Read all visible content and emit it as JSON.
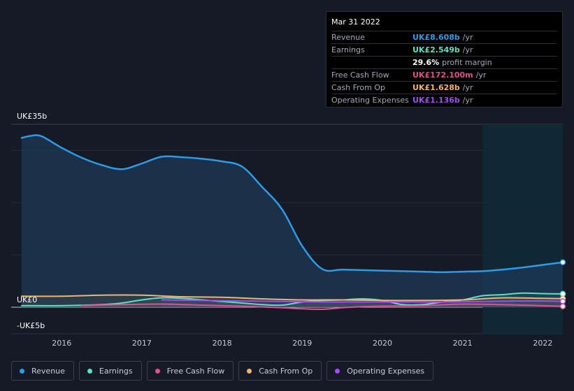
{
  "tooltip": {
    "date": "Mar 31 2022",
    "rows": [
      {
        "label": "Revenue",
        "value": "UK£8.608b",
        "unit": "/yr",
        "color": "#2f9be6"
      },
      {
        "label": "Earnings",
        "value": "UK£2.549b",
        "unit": "/yr",
        "color": "#5ee0c4"
      },
      {
        "label": "",
        "value": "29.6%",
        "unit": "profit margin",
        "color": "#ffffff"
      },
      {
        "label": "Free Cash Flow",
        "value": "UK£172.100m",
        "unit": "/yr",
        "color": "#e0508c"
      },
      {
        "label": "Cash From Op",
        "value": "UK£1.628b",
        "unit": "/yr",
        "color": "#f2b36b"
      },
      {
        "label": "Operating Expenses",
        "value": "UK£1.136b",
        "unit": "/yr",
        "color": "#a04ef0"
      }
    ]
  },
  "legend": [
    {
      "label": "Revenue",
      "color": "#2f9be6"
    },
    {
      "label": "Earnings",
      "color": "#5ee0c4"
    },
    {
      "label": "Free Cash Flow",
      "color": "#e0508c"
    },
    {
      "label": "Cash From Op",
      "color": "#f2b36b"
    },
    {
      "label": "Operating Expenses",
      "color": "#a04ef0"
    }
  ],
  "chart_data": {
    "type": "line",
    "ytick_labels": [
      "UK£35b",
      "UK£0",
      "-UK£5b"
    ],
    "xtick_labels": [
      "2016",
      "2017",
      "2018",
      "2019",
      "2020",
      "2021",
      "2022"
    ],
    "ylim": [
      -5,
      35
    ],
    "xlim": [
      2015.37,
      2022.25
    ],
    "forecast_shade_start": 2021.25,
    "series": [
      {
        "name": "Revenue",
        "color": "#2f9be6",
        "x": [
          2015.5,
          2015.62,
          2015.75,
          2016.0,
          2016.25,
          2016.5,
          2016.75,
          2017.0,
          2017.25,
          2017.5,
          2017.75,
          2018.0,
          2018.25,
          2018.5,
          2018.75,
          2019.0,
          2019.25,
          2019.5,
          2019.75,
          2020.0,
          2020.25,
          2020.5,
          2020.75,
          2021.0,
          2021.25,
          2021.5,
          2021.75,
          2022.0,
          2022.25
        ],
        "y": [
          32.4,
          32.8,
          32.7,
          30.5,
          28.6,
          27.2,
          26.4,
          27.5,
          28.8,
          28.7,
          28.4,
          27.9,
          26.9,
          23.0,
          18.7,
          11.7,
          7.3,
          7.2,
          7.1,
          7.0,
          6.9,
          6.8,
          6.7,
          6.8,
          6.9,
          7.2,
          7.6,
          8.1,
          8.6
        ]
      },
      {
        "name": "Earnings",
        "color": "#5ee0c4",
        "x": [
          2015.5,
          2016.0,
          2016.5,
          2016.75,
          2017.0,
          2017.25,
          2017.5,
          2017.75,
          2018.0,
          2018.25,
          2018.5,
          2018.75,
          2019.0,
          2019.25,
          2019.5,
          2019.75,
          2020.0,
          2020.25,
          2020.5,
          2020.75,
          2021.0,
          2021.25,
          2021.5,
          2021.75,
          2022.0,
          2022.25
        ],
        "y": [
          0.3,
          0.3,
          0.5,
          0.8,
          1.4,
          1.8,
          1.7,
          1.4,
          1.1,
          0.8,
          0.5,
          0.4,
          1.0,
          1.3,
          1.4,
          1.6,
          1.3,
          0.5,
          0.5,
          1.0,
          1.4,
          2.2,
          2.4,
          2.7,
          2.6,
          2.55
        ]
      },
      {
        "name": "Free Cash Flow",
        "color": "#e0508c",
        "x": [
          2016.25,
          2016.75,
          2017.25,
          2017.75,
          2018.25,
          2018.75,
          2019.0,
          2019.25,
          2019.5,
          2019.75,
          2020.0,
          2020.5,
          2021.0,
          2021.5,
          2022.0,
          2022.25
        ],
        "y": [
          0.3,
          0.5,
          0.6,
          0.4,
          0.2,
          -0.1,
          -0.3,
          -0.4,
          -0.1,
          0.1,
          0.2,
          0.3,
          0.6,
          0.5,
          0.3,
          0.17
        ]
      },
      {
        "name": "Cash From Op",
        "color": "#f2b36b",
        "x": [
          2015.5,
          2016.0,
          2016.5,
          2017.0,
          2017.5,
          2018.0,
          2018.5,
          2019.0,
          2019.5,
          2020.0,
          2020.5,
          2021.0,
          2021.5,
          2022.0,
          2022.25
        ],
        "y": [
          2.1,
          2.1,
          2.3,
          2.3,
          2.0,
          1.9,
          1.6,
          1.4,
          1.4,
          1.3,
          1.3,
          1.4,
          1.8,
          1.7,
          1.63
        ]
      },
      {
        "name": "Operating Expenses",
        "color": "#a04ef0",
        "x": [
          2017.25,
          2017.75,
          2018.25,
          2018.75,
          2019.25,
          2019.75,
          2020.25,
          2020.75,
          2021.25,
          2021.75,
          2022.25
        ],
        "y": [
          1.4,
          1.3,
          1.2,
          1.1,
          1.0,
          1.0,
          1.0,
          1.0,
          1.1,
          1.2,
          1.14
        ]
      }
    ]
  }
}
